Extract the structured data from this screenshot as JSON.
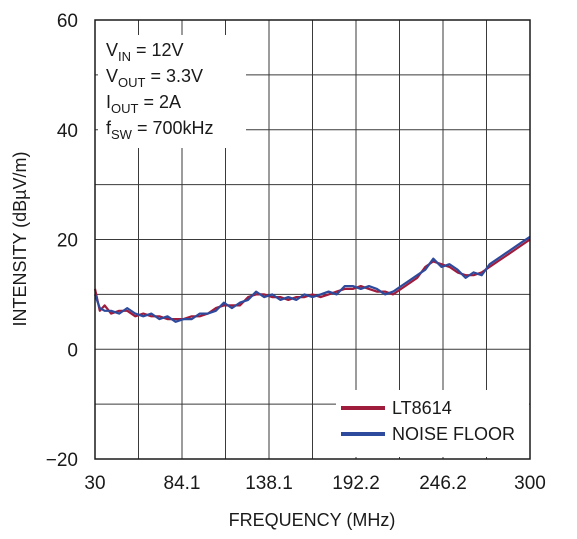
{
  "chart_data": {
    "type": "line",
    "xlabel": "FREQUENCY (MHz)",
    "ylabel": "INTENSITY (dBµV/m)",
    "xlim": [
      30,
      300
    ],
    "ylim": [
      -20,
      60
    ],
    "x_ticks": [
      "30",
      "84.1",
      "138.1",
      "192.2",
      "246.2",
      "300"
    ],
    "y_ticks": [
      "60",
      "40",
      "20",
      "0",
      "−20"
    ],
    "grid": true,
    "legend_position": "bottom-right",
    "annotations": [
      {
        "base": "V",
        "sub": "IN",
        "rest": " = 12V"
      },
      {
        "base": "V",
        "sub": "OUT",
        "rest": " = 3.3V"
      },
      {
        "base": "I",
        "sub": "OUT",
        "rest": " = 2A"
      },
      {
        "base": "f",
        "sub": "SW",
        "rest": " = 700kHz"
      }
    ],
    "series": [
      {
        "name": "LT8614",
        "color": "#a01c3c",
        "points": [
          [
            30,
            11
          ],
          [
            33,
            7
          ],
          [
            36,
            8
          ],
          [
            40,
            6.5
          ],
          [
            45,
            7
          ],
          [
            50,
            7
          ],
          [
            55,
            6
          ],
          [
            60,
            6.5
          ],
          [
            65,
            6
          ],
          [
            70,
            6
          ],
          [
            75,
            5.5
          ],
          [
            80,
            5.5
          ],
          [
            85,
            5.5
          ],
          [
            90,
            6
          ],
          [
            95,
            6
          ],
          [
            100,
            6.5
          ],
          [
            105,
            7.5
          ],
          [
            110,
            8
          ],
          [
            115,
            8
          ],
          [
            120,
            8
          ],
          [
            125,
            9.5
          ],
          [
            130,
            10
          ],
          [
            135,
            10
          ],
          [
            140,
            9.5
          ],
          [
            145,
            9.5
          ],
          [
            150,
            9
          ],
          [
            155,
            9.5
          ],
          [
            160,
            9.5
          ],
          [
            165,
            10
          ],
          [
            170,
            9.5
          ],
          [
            175,
            10
          ],
          [
            180,
            10.5
          ],
          [
            185,
            11
          ],
          [
            190,
            11
          ],
          [
            195,
            11.5
          ],
          [
            200,
            11
          ],
          [
            205,
            10.5
          ],
          [
            210,
            10.5
          ],
          [
            215,
            10
          ],
          [
            220,
            11
          ],
          [
            225,
            12
          ],
          [
            230,
            13
          ],
          [
            235,
            15
          ],
          [
            240,
            16
          ],
          [
            245,
            15.5
          ],
          [
            250,
            15
          ],
          [
            255,
            14
          ],
          [
            260,
            13.5
          ],
          [
            265,
            13.5
          ],
          [
            270,
            14
          ],
          [
            275,
            15
          ],
          [
            280,
            16
          ],
          [
            285,
            17
          ],
          [
            290,
            18
          ],
          [
            295,
            19
          ],
          [
            300,
            20
          ]
        ]
      },
      {
        "name": "NOISE FLOOR",
        "color": "#2e4a9c",
        "points": [
          [
            30,
            10
          ],
          [
            33,
            7.5
          ],
          [
            36,
            7
          ],
          [
            40,
            7
          ],
          [
            45,
            6.5
          ],
          [
            50,
            7.5
          ],
          [
            55,
            6.5
          ],
          [
            60,
            6
          ],
          [
            65,
            6.5
          ],
          [
            70,
            5.5
          ],
          [
            75,
            6
          ],
          [
            80,
            5
          ],
          [
            85,
            5.5
          ],
          [
            90,
            5.5
          ],
          [
            95,
            6.5
          ],
          [
            100,
            6.5
          ],
          [
            105,
            7
          ],
          [
            110,
            8.5
          ],
          [
            115,
            7.5
          ],
          [
            120,
            8.5
          ],
          [
            125,
            9
          ],
          [
            130,
            10.5
          ],
          [
            135,
            9.5
          ],
          [
            140,
            10
          ],
          [
            145,
            9
          ],
          [
            150,
            9.5
          ],
          [
            155,
            9
          ],
          [
            160,
            10
          ],
          [
            165,
            9.5
          ],
          [
            170,
            10
          ],
          [
            175,
            10.5
          ],
          [
            180,
            10
          ],
          [
            185,
            11.5
          ],
          [
            190,
            11.5
          ],
          [
            195,
            11
          ],
          [
            200,
            11.5
          ],
          [
            205,
            11
          ],
          [
            210,
            10
          ],
          [
            215,
            10.5
          ],
          [
            220,
            11.5
          ],
          [
            225,
            12.5
          ],
          [
            230,
            13.5
          ],
          [
            235,
            14.5
          ],
          [
            240,
            16.5
          ],
          [
            245,
            15
          ],
          [
            250,
            15.5
          ],
          [
            255,
            14.5
          ],
          [
            260,
            13
          ],
          [
            265,
            14
          ],
          [
            270,
            13.5
          ],
          [
            275,
            15.5
          ],
          [
            280,
            16.5
          ],
          [
            285,
            17.5
          ],
          [
            290,
            18.5
          ],
          [
            295,
            19.5
          ],
          [
            300,
            20.5
          ]
        ]
      }
    ]
  }
}
